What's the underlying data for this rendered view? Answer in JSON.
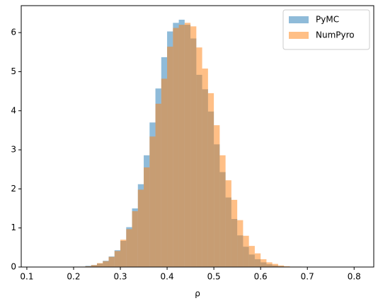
{
  "chart_data": {
    "type": "histogram",
    "xlabel": "ρ",
    "bins": [
      0.175,
      0.1875,
      0.2,
      0.2125,
      0.225,
      0.2375,
      0.25,
      0.2625,
      0.275,
      0.2875,
      0.3,
      0.3125,
      0.325,
      0.3375,
      0.35,
      0.3625,
      0.375,
      0.3875,
      0.4,
      0.4125,
      0.425,
      0.4375,
      0.45,
      0.4625,
      0.475,
      0.4875,
      0.5,
      0.5125,
      0.525,
      0.5375,
      0.55,
      0.5625,
      0.575,
      0.5875,
      0.6,
      0.6125,
      0.625,
      0.6375,
      0.65,
      0.6625,
      0.675,
      0.6875,
      0.7,
      0.7125,
      0.725,
      0.7375,
      0.75
    ],
    "series": [
      {
        "name": "PyMC",
        "color": "#1f77b4",
        "values": [
          0,
          0,
          0.01,
          0.01,
          0.03,
          0.05,
          0.09,
          0.16,
          0.27,
          0.43,
          0.67,
          1.02,
          1.5,
          2.12,
          2.86,
          3.7,
          4.57,
          5.37,
          6.03,
          6.25,
          6.33,
          6.2,
          5.85,
          4.92,
          4.55,
          3.98,
          3.14,
          2.43,
          1.78,
          1.23,
          0.81,
          0.52,
          0.32,
          0.2,
          0.12,
          0.07,
          0.04,
          0.02,
          0.01,
          0.01,
          0.01,
          0,
          0,
          0,
          0,
          0
        ]
      },
      {
        "name": "NumPyro",
        "color": "#ff7f0e",
        "values": [
          0,
          0,
          0.01,
          0.01,
          0.02,
          0.05,
          0.1,
          0.15,
          0.26,
          0.41,
          0.7,
          0.97,
          1.43,
          1.98,
          2.55,
          3.34,
          4.18,
          4.82,
          5.64,
          6.12,
          6.2,
          6.25,
          6.16,
          5.62,
          5.08,
          4.45,
          3.63,
          2.86,
          2.22,
          1.72,
          1.2,
          0.8,
          0.54,
          0.35,
          0.2,
          0.12,
          0.08,
          0.04,
          0.02,
          0.01,
          0.01,
          0,
          0,
          0,
          0,
          0
        ]
      }
    ],
    "alpha": 0.5,
    "xlim": [
      0.088,
      0.842
    ],
    "xticks": [
      0.1,
      0.2,
      0.3,
      0.4,
      0.5,
      0.6,
      0.7,
      0.8
    ],
    "ylim": [
      0,
      6.69
    ],
    "yticks": [
      0,
      1,
      2,
      3,
      4,
      5,
      6
    ],
    "legend": "upper right"
  }
}
